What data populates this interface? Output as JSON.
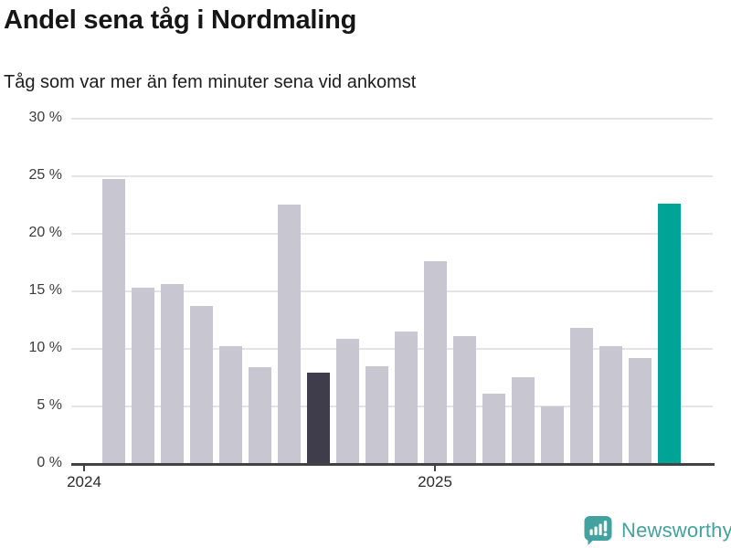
{
  "header": {
    "title": "Andel sena tåg i Nordmaling",
    "subtitle": "Tåg som var mer än fem minuter sena vid ankomst"
  },
  "chart_data": {
    "type": "bar",
    "title": "Andel sena tåg i Nordmaling",
    "subtitle": "Tåg som var mer än fem minuter sena vid ankomst",
    "unit": "%",
    "ylim": [
      0,
      30
    ],
    "yticks": [
      0,
      5,
      10,
      15,
      20,
      25,
      30
    ],
    "ytick_suffix": " %",
    "grid": true,
    "legend": "none",
    "x": [
      "2024-02",
      "2024-03",
      "2024-04",
      "2024-05",
      "2024-06",
      "2024-07",
      "2024-08",
      "2024-09",
      "2024-10",
      "2024-11",
      "2024-12",
      "2025-01",
      "2025-02",
      "2025-03",
      "2025-04",
      "2025-05",
      "2025-06",
      "2025-07",
      "2025-08",
      "2025-09"
    ],
    "values": [
      24.8,
      15.3,
      15.6,
      13.7,
      10.2,
      8.4,
      22.5,
      7.9,
      10.9,
      8.5,
      11.5,
      17.6,
      11.1,
      6.1,
      7.5,
      5.0,
      11.8,
      10.2,
      9.2,
      22.6
    ],
    "highlight": {
      "dark_month": "2024-09",
      "accent_month": "2025-09"
    },
    "xticks": [
      {
        "label": "2024",
        "month": "2024-01"
      },
      {
        "label": "2025",
        "month": "2025-01"
      }
    ],
    "colors": {
      "bar_default": "#c8c6d0",
      "bar_dark": "#3f3c4c",
      "bar_accent": "#00a496",
      "gridline": "#e4e3e7",
      "axis": "#424242",
      "tick_text": "#3b3b3b"
    }
  },
  "footer": {
    "brand": "Newsworthy",
    "logo_icon": "newsworthy-bar-chart-bubble-icon",
    "brand_color": "#43a29d"
  }
}
